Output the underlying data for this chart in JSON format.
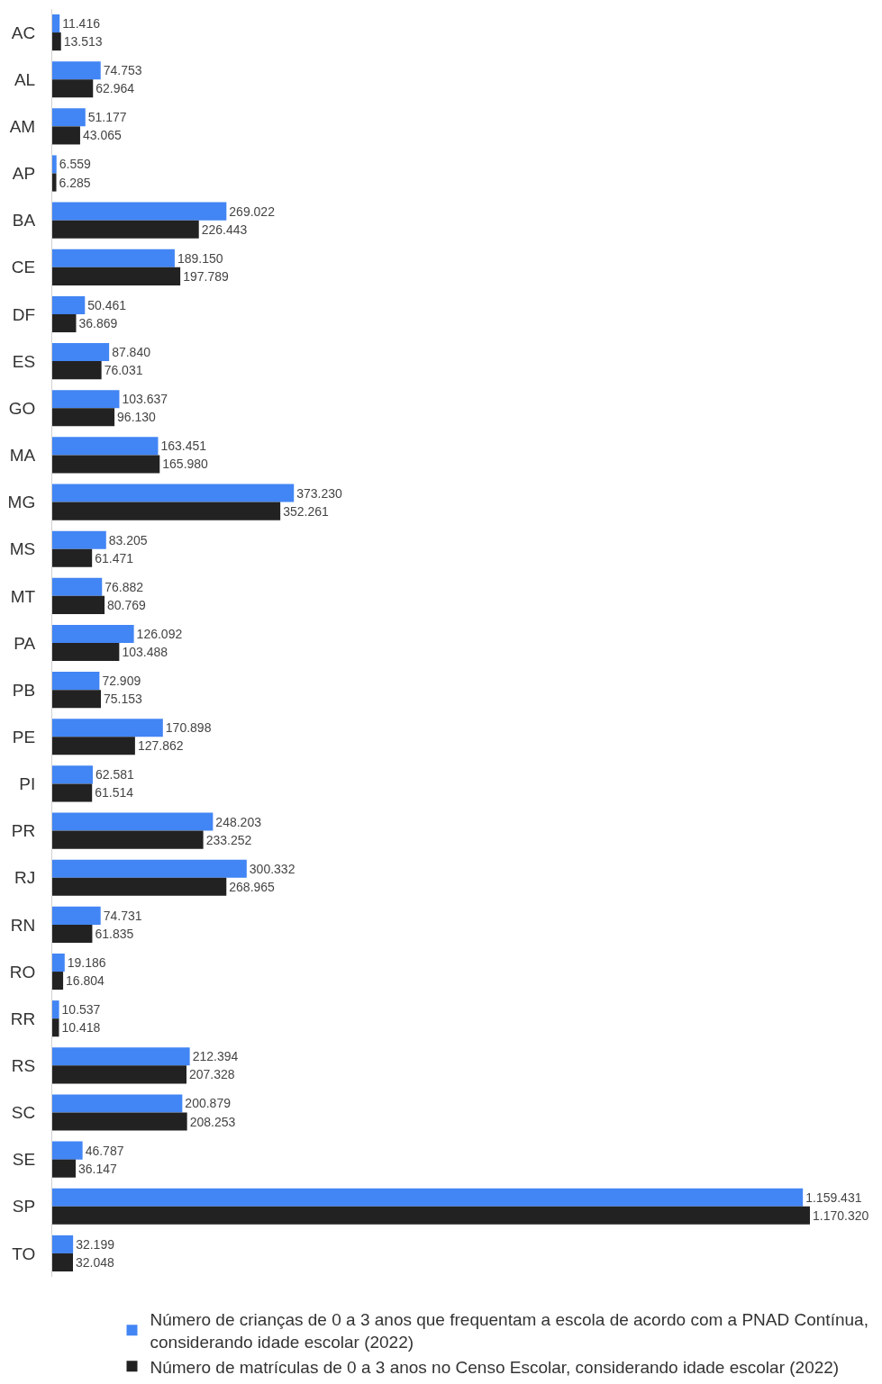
{
  "chart_data": {
    "type": "bar",
    "orientation": "horizontal",
    "tick_labels": "y",
    "legend": "bottom",
    "categories": [
      "AC",
      "AL",
      "AM",
      "AP",
      "BA",
      "CE",
      "DF",
      "ES",
      "GO",
      "MA",
      "MG",
      "MS",
      "MT",
      "PA",
      "PB",
      "PE",
      "PI",
      "PR",
      "RJ",
      "RN",
      "RO",
      "RR",
      "RS",
      "SC",
      "SE",
      "SP",
      "TO"
    ],
    "series": [
      {
        "name": "Número de crianças de 0 a 3 anos que frequentam a escola de acordo com a PNAD Contínua, considerando idade escolar (2022)",
        "color": "#4285f4",
        "values": [
          11416,
          74753,
          51177,
          6559,
          269022,
          189150,
          50461,
          87840,
          103637,
          163451,
          373230,
          83205,
          76882,
          126092,
          72909,
          170898,
          62581,
          248203,
          300332,
          74731,
          19186,
          10537,
          212394,
          200879,
          46787,
          1159431,
          32199
        ],
        "value_labels": [
          "11.416",
          "74.753",
          "51.177",
          "6.559",
          "269.022",
          "189.150",
          "50.461",
          "87.840",
          "103.637",
          "163.451",
          "373.230",
          "83.205",
          "76.882",
          "126.092",
          "72.909",
          "170.898",
          "62.581",
          "248.203",
          "300.332",
          "74.731",
          "19.186",
          "10.537",
          "212.394",
          "200.879",
          "46.787",
          "1.159.431",
          "32.199"
        ]
      },
      {
        "name": "Número de matrículas de 0 a 3 anos no Censo Escolar, considerando idade escolar (2022)",
        "color": "#222222",
        "values": [
          13513,
          62964,
          43065,
          6285,
          226443,
          197789,
          36869,
          76031,
          96130,
          165980,
          352261,
          61471,
          80769,
          103488,
          75153,
          127862,
          61514,
          233252,
          268965,
          61835,
          16804,
          10418,
          207328,
          208253,
          36147,
          1170320,
          32048
        ],
        "value_labels": [
          "13.513",
          "62.964",
          "43.065",
          "6.285",
          "226.443",
          "197.789",
          "36.869",
          "76.031",
          "96.130",
          "165.980",
          "352.261",
          "61.471",
          "80.769",
          "103.488",
          "75.153",
          "127.862",
          "61.514",
          "233.252",
          "268.965",
          "61.835",
          "16.804",
          "10.418",
          "207.328",
          "208.253",
          "36.147",
          "1.170.320",
          "32.048"
        ]
      }
    ]
  }
}
